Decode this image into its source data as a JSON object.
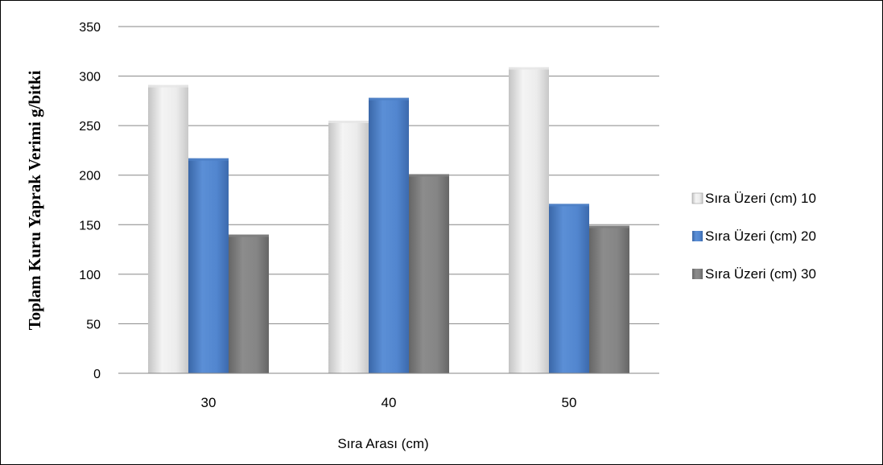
{
  "chart_data": {
    "type": "bar",
    "title": "",
    "xlabel": "Sıra Arası  (cm)",
    "ylabel": "Toplam Kuru Yaprak Verimi g/bitki",
    "categories": [
      "30",
      "40",
      "50"
    ],
    "ylim": [
      0,
      350
    ],
    "yticks": [
      "0",
      "50",
      "100",
      "150",
      "200",
      "250",
      "300",
      "350"
    ],
    "grid": true,
    "legend_position": "right",
    "series": [
      {
        "name": "Sıra Üzeri (cm) 10",
        "values": [
          291,
          255,
          309
        ],
        "color": "#e6e6e6"
      },
      {
        "name": "Sıra Üzeri (cm) 20",
        "values": [
          217,
          278,
          171
        ],
        "color": "#4f81c7"
      },
      {
        "name": "Sıra Üzeri (cm) 30",
        "values": [
          140,
          201,
          149
        ],
        "color": "#7f7f7f"
      }
    ]
  }
}
